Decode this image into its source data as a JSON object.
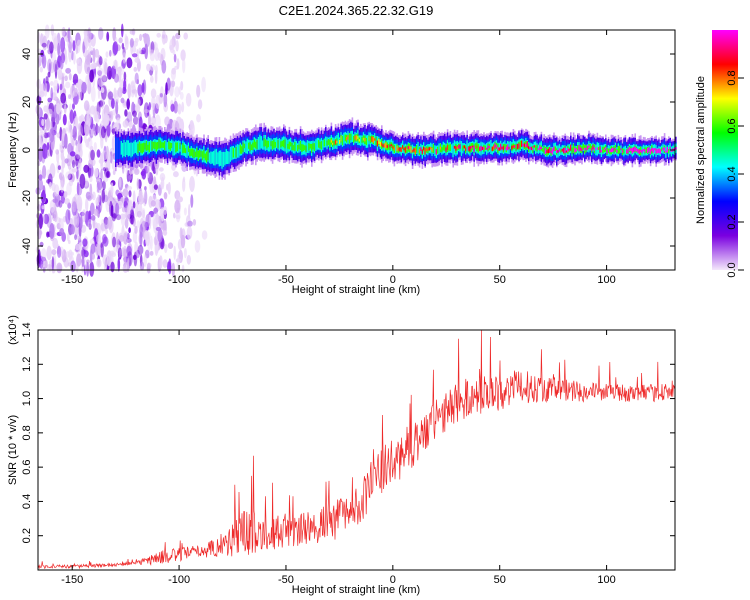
{
  "title": "C2E1.2024.365.22.32.G19",
  "chart_data": [
    {
      "type": "heatmap",
      "xlabel": "Height of straight line (km)",
      "ylabel": "Frequency (Hz)",
      "xlim": [
        -166,
        132
      ],
      "ylim": [
        -50,
        50
      ],
      "x_ticks": [
        -150,
        -100,
        -50,
        0,
        50,
        100
      ],
      "y_ticks": [
        -40,
        -20,
        0,
        20,
        40
      ],
      "colorbar": {
        "label": "Normalized spectral amplitude",
        "range": [
          0,
          1
        ],
        "ticks": [
          0.0,
          0.2,
          0.4,
          0.6,
          0.8
        ],
        "colors": [
          "#f4e8fb",
          "#7a00e0",
          "#0000ff",
          "#00ffff",
          "#00ff00",
          "#ffff00",
          "#ff0000",
          "#ff00ff"
        ]
      },
      "ridge": {
        "x": [
          -130,
          -120,
          -110,
          -100,
          -90,
          -80,
          -70,
          -60,
          -50,
          -40,
          -30,
          -20,
          -10,
          0,
          10,
          20,
          30,
          40,
          50,
          60,
          70,
          80,
          90,
          100,
          110,
          120,
          130
        ],
        "frequency": [
          0,
          1,
          2,
          1,
          -2,
          -4,
          1,
          3,
          2,
          1,
          3,
          5,
          4,
          1,
          0,
          0,
          1,
          1,
          1,
          2,
          0,
          0,
          1,
          0,
          0,
          0,
          0
        ],
        "amplitude": [
          0.25,
          0.45,
          0.5,
          0.5,
          0.5,
          0.4,
          0.5,
          0.55,
          0.55,
          0.55,
          0.6,
          0.6,
          0.6,
          0.65,
          0.7,
          0.7,
          0.7,
          0.72,
          0.75,
          0.78,
          0.8,
          0.82,
          0.85,
          0.88,
          0.9,
          0.92,
          0.95
        ]
      },
      "noise_region_x": [
        -166,
        -120
      ],
      "noise_fade_x": [
        -120,
        -85
      ]
    },
    {
      "type": "line",
      "xlabel": "Height of straight line (km)",
      "ylabel": "SNR (10 * v/v)",
      "scale_note": "(x10⁴)",
      "xlim": [
        -166,
        132
      ],
      "ylim": [
        0,
        1.4
      ],
      "x_ticks": [
        -150,
        -100,
        -50,
        0,
        50,
        100
      ],
      "y_ticks": [
        0.2,
        0.4,
        0.6,
        0.8,
        1.0,
        1.2,
        1.4
      ],
      "color": "#ee2a2a",
      "series": [
        {
          "x": [
            -166,
            -150,
            -130,
            -120,
            -110,
            -100,
            -90,
            -80,
            -75,
            -70,
            -60,
            -50,
            -40,
            -30,
            -20,
            -15,
            -10,
            -5,
            0,
            5,
            10,
            15,
            20,
            25,
            30,
            40,
            50,
            60,
            70,
            80,
            90,
            100,
            110,
            120,
            132
          ],
          "values": [
            0.02,
            0.02,
            0.03,
            0.04,
            0.07,
            0.09,
            0.11,
            0.14,
            0.18,
            0.22,
            0.22,
            0.22,
            0.24,
            0.28,
            0.33,
            0.4,
            0.5,
            0.58,
            0.62,
            0.68,
            0.74,
            0.8,
            0.86,
            0.92,
            0.98,
            1.02,
            1.04,
            1.07,
            1.06,
            1.05,
            1.04,
            1.04,
            1.03,
            1.03,
            1.05
          ],
          "noise_amplitude": [
            0.01,
            0.01,
            0.01,
            0.01,
            0.04,
            0.04,
            0.04,
            0.06,
            0.12,
            0.15,
            0.1,
            0.1,
            0.1,
            0.12,
            0.12,
            0.12,
            0.14,
            0.14,
            0.14,
            0.14,
            0.13,
            0.13,
            0.12,
            0.12,
            0.12,
            0.12,
            0.11,
            0.1,
            0.08,
            0.07,
            0.06,
            0.05,
            0.05,
            0.05,
            0.06
          ]
        }
      ]
    }
  ]
}
